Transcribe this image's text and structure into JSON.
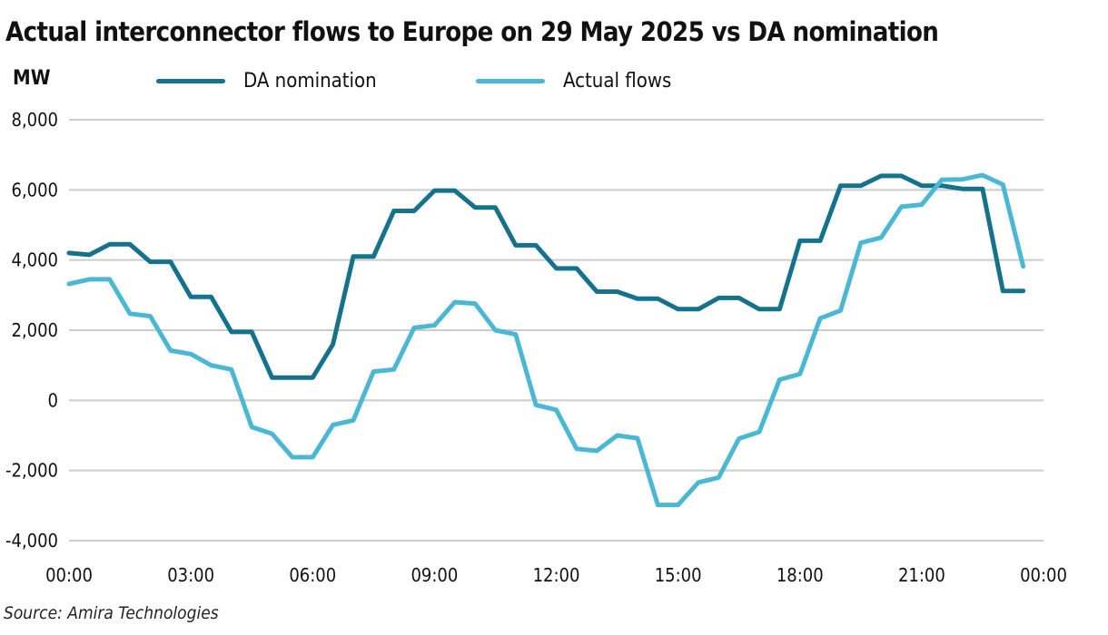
{
  "header": {
    "title": "Actual interconnector flows to Europe on 29 May 2025 vs DA nomination",
    "unit": "MW"
  },
  "footer": {
    "source": "Source: Amira Technologies"
  },
  "colors": {
    "da_nomination": "#14728c",
    "actual_flows": "#4ab7d4",
    "grid": "#cccccc"
  },
  "chart_data": {
    "type": "line",
    "title": "Actual interconnector flows to Europe on 29 May 2025 vs DA nomination",
    "ylabel": "MW",
    "xlabel": "",
    "ylim": [
      -4000,
      8000
    ],
    "yticks": [
      -4000,
      -2000,
      0,
      2000,
      4000,
      6000,
      8000
    ],
    "ytick_labels": [
      "-4,000",
      "-2,000",
      "0",
      "2,000",
      "4,000",
      "6,000",
      "8,000"
    ],
    "xtick_labels": [
      "00:00",
      "03:00",
      "06:00",
      "09:00",
      "12:00",
      "15:00",
      "18:00",
      "21:00",
      "00:00"
    ],
    "xtick_hours": [
      0,
      3,
      6,
      9,
      12,
      15,
      18,
      21,
      24
    ],
    "grid": true,
    "legend_position": "top",
    "x_hours": [
      0,
      0.5,
      1,
      1.5,
      2,
      2.5,
      3,
      3.5,
      4,
      4.5,
      5,
      5.5,
      6,
      6.5,
      7,
      7.5,
      8,
      8.5,
      9,
      9.5,
      10,
      10.5,
      11,
      11.5,
      12,
      12.5,
      13,
      13.5,
      14,
      14.5,
      15,
      15.5,
      16,
      16.5,
      17,
      17.5,
      18,
      18.5,
      19,
      19.5,
      20,
      20.5,
      21,
      21.5,
      22,
      22.5,
      23,
      23.5,
      24
    ],
    "series": [
      {
        "name": "DA nomination",
        "color": "#14728c",
        "values": [
          4200,
          4150,
          4450,
          4450,
          3950,
          3950,
          2950,
          2950,
          1950,
          1950,
          650,
          650,
          650,
          1600,
          4100,
          4100,
          5400,
          5400,
          5980,
          5980,
          5500,
          5500,
          4420,
          4420,
          3760,
          3760,
          3100,
          3100,
          2900,
          2900,
          2600,
          2600,
          2920,
          2920,
          2600,
          2600,
          4550,
          4550,
          6120,
          6120,
          6400,
          6400,
          6120,
          6120,
          6030,
          6030,
          3120,
          3120,
          null
        ]
      },
      {
        "name": "Actual flows",
        "color": "#4ab7d4",
        "values": [
          3320,
          3450,
          3450,
          2470,
          2400,
          1420,
          1320,
          1000,
          880,
          -760,
          -950,
          -1620,
          -1620,
          -700,
          -570,
          820,
          880,
          2070,
          2140,
          2800,
          2760,
          2000,
          1880,
          -130,
          -270,
          -1380,
          -1440,
          -1000,
          -1080,
          -2980,
          -2980,
          -2340,
          -2200,
          -1090,
          -900,
          590,
          750,
          2340,
          2560,
          4490,
          4640,
          5520,
          5580,
          6290,
          6300,
          6420,
          6150,
          3820,
          null
        ]
      }
    ]
  }
}
